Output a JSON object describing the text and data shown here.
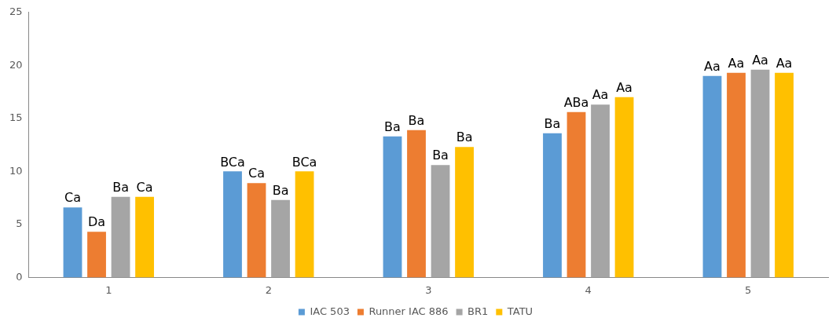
{
  "chart_data": {
    "type": "bar",
    "categories": [
      "1",
      "2",
      "3",
      "4",
      "5"
    ],
    "series": [
      {
        "name": "IAC 503",
        "color": "#5b9bd5",
        "values": [
          6.6,
          10.0,
          13.3,
          13.6,
          19.0
        ],
        "value_labels": [
          "Ca",
          "BCa",
          "Ba",
          "Ba",
          "Aa"
        ]
      },
      {
        "name": "Runner IAC 886",
        "color": "#ed7d31",
        "values": [
          4.3,
          8.9,
          13.9,
          15.6,
          19.3
        ],
        "value_labels": [
          "Da",
          "Ca",
          "Ba",
          "ABa",
          "Aa"
        ]
      },
      {
        "name": "BR1",
        "color": "#a5a5a5",
        "values": [
          7.6,
          7.3,
          10.6,
          16.3,
          19.6
        ],
        "value_labels": [
          "Ba",
          "Ba",
          "Ba",
          "Aa",
          "Aa"
        ]
      },
      {
        "name": "TATU",
        "color": "#ffc000",
        "values": [
          7.6,
          10.0,
          12.3,
          17.0,
          19.3
        ],
        "value_labels": [
          "Ca",
          "BCa",
          "Ba",
          "Aa",
          "Aa"
        ]
      }
    ],
    "ylim": [
      0,
      25
    ],
    "yticks": [
      0,
      5,
      10,
      15,
      20,
      25
    ],
    "grid": false,
    "legend": "bottom"
  }
}
